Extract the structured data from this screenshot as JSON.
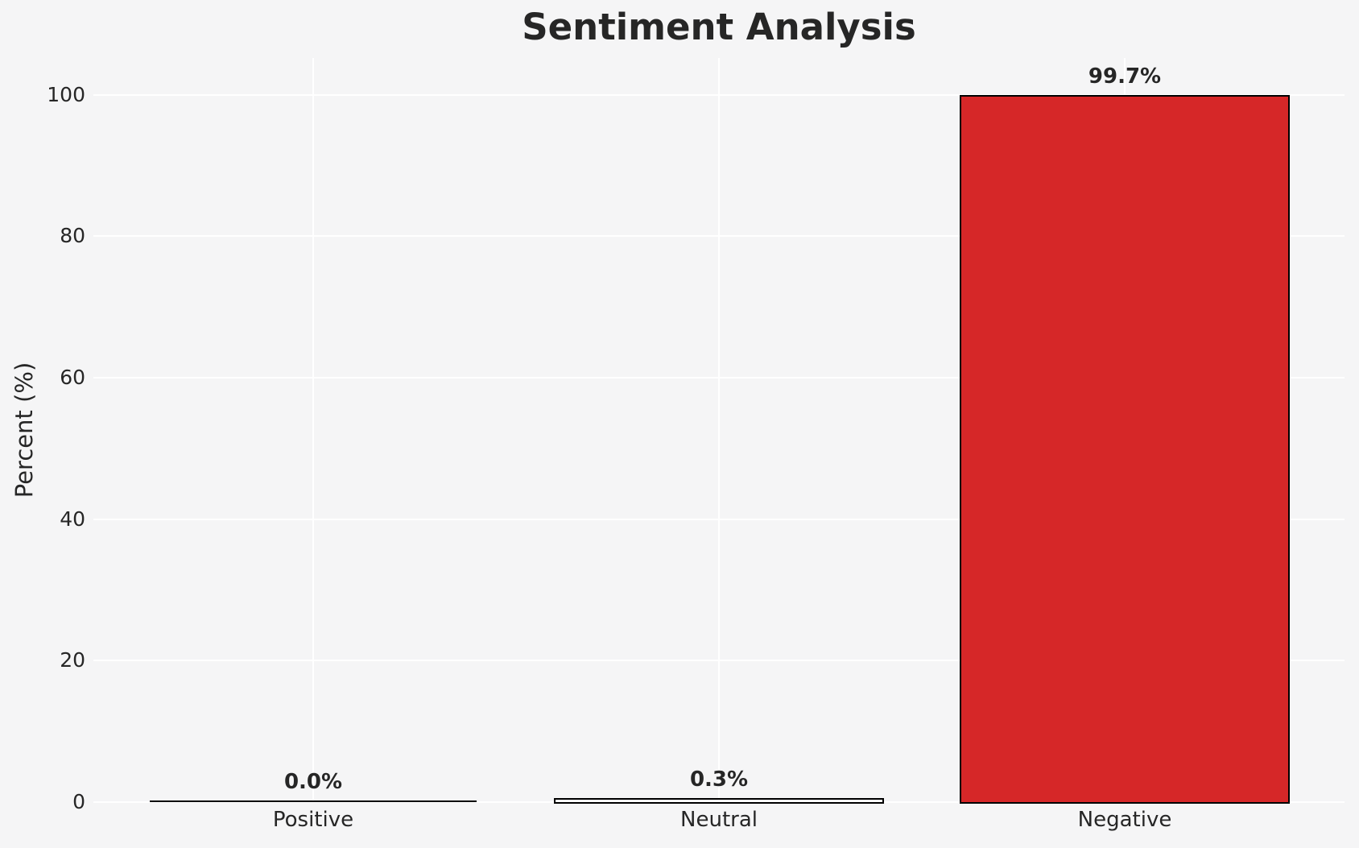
{
  "chart_data": {
    "type": "bar",
    "title": "Sentiment Analysis",
    "xlabel": "",
    "ylabel": "Percent (%)",
    "categories": [
      "Positive",
      "Neutral",
      "Negative"
    ],
    "values": [
      0.0,
      0.3,
      99.7
    ],
    "value_labels": [
      "0.0%",
      "0.3%",
      "99.7%"
    ],
    "bar_fills": [
      "none",
      "none",
      "#d62728"
    ],
    "bar_edge_color": "#000000",
    "yticks": [
      0,
      20,
      40,
      60,
      80,
      100
    ],
    "ylim": [
      0,
      104.7
    ],
    "grid": true,
    "gridline_color": "#ffffff",
    "background_color": "#f5f5f6",
    "text_color": "#262626",
    "legend": null
  }
}
